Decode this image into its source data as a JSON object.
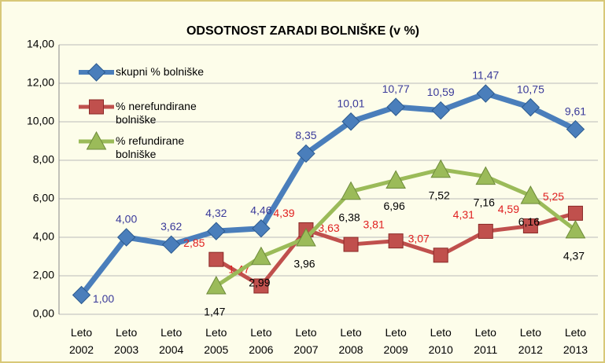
{
  "chart_data": {
    "type": "line",
    "title": "ODSOTNOST ZARADI BOLNIŠKE (v %)",
    "categories": [
      "Leto 2002",
      "Leto 2003",
      "Leto 2004",
      "Leto 2005",
      "Leto 2006",
      "Leto 2007",
      "Leto 2008",
      "Leto 2009",
      "Leto 2010",
      "Leto 2011",
      "Leto 2012",
      "Leto 2013"
    ],
    "series": [
      {
        "name": "skupni % bolniške",
        "color": "#4a7ebb",
        "marker": "diamond",
        "label_color": "#3a3a9a",
        "values": [
          1.0,
          4.0,
          3.62,
          4.32,
          4.46,
          8.35,
          10.01,
          10.77,
          10.59,
          11.47,
          10.75,
          9.61
        ],
        "value_labels": [
          "1,00",
          "4,00",
          "3,62",
          "4,32",
          "4,46",
          "8,35",
          "10,01",
          "10,77",
          "10,59",
          "11,47",
          "10,75",
          "9,61"
        ]
      },
      {
        "name": "% nerefundirane bolniške",
        "color": "#c0504d",
        "marker": "square",
        "label_color": "#e02020",
        "values": [
          null,
          null,
          null,
          2.85,
          1.47,
          4.39,
          3.63,
          3.81,
          3.07,
          4.31,
          4.59,
          5.25
        ],
        "value_labels": [
          null,
          null,
          null,
          "2,85",
          "1,47",
          "4,39",
          "3,63",
          "3,81",
          "3,07",
          "4,31",
          "4,59",
          "5,25"
        ]
      },
      {
        "name": "% refundirane bolniške",
        "color": "#9bbb59",
        "marker": "triangle",
        "label_color": "#000000",
        "values": [
          null,
          null,
          null,
          1.47,
          2.99,
          3.96,
          6.38,
          6.96,
          7.52,
          7.16,
          6.16,
          4.37
        ],
        "value_labels": [
          null,
          null,
          null,
          "1,47",
          "2,99",
          "3,96",
          "6,38",
          "6,96",
          "7,52",
          "7,16",
          "6,16",
          "4,37"
        ]
      }
    ],
    "ylim": [
      0,
      14
    ],
    "yticks": [
      {
        "value": 0,
        "label": "0,00"
      },
      {
        "value": 2,
        "label": "2,00"
      },
      {
        "value": 4,
        "label": "4,00"
      },
      {
        "value": 6,
        "label": "6,00"
      },
      {
        "value": 8,
        "label": "8,00"
      },
      {
        "value": 10,
        "label": "10,00"
      },
      {
        "value": 12,
        "label": "12,00"
      },
      {
        "value": 14,
        "label": "14,00"
      }
    ],
    "grid": true,
    "legend": "upper left"
  }
}
